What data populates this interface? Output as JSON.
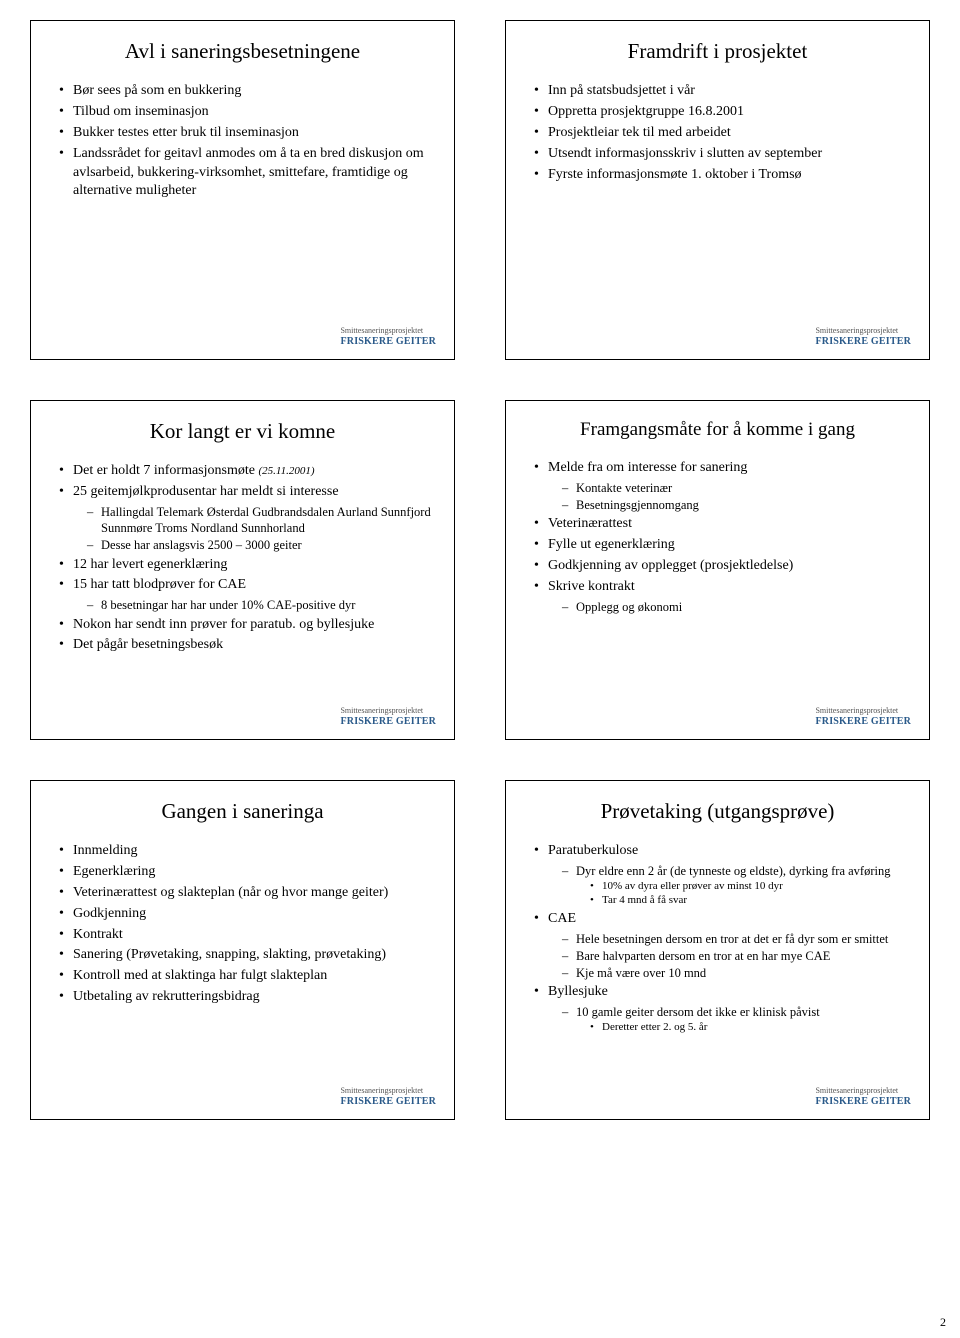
{
  "brand": {
    "line1": "Smittesaneringsprosjektet",
    "line2": "FRISKERE GEITER"
  },
  "pageNumber": "2",
  "slides": {
    "s1": {
      "title": "Avl i saneringsbesetningene",
      "b1": "Bør sees på som en bukkering",
      "b2": "Tilbud om inseminasjon",
      "b3": "Bukker testes etter bruk til inseminasjon",
      "b4": "Landssrådet for geitavl anmodes om å ta en bred diskusjon om avlsarbeid, bukkering-virksomhet, smittefare, framtidige og alternative muligheter"
    },
    "s2": {
      "title": "Framdrift i prosjektet",
      "b1": "Inn på statsbudsjettet i vår",
      "b2": "Oppretta prosjektgruppe 16.8.2001",
      "b3": "Prosjektleiar tek til med arbeidet",
      "b4": "Utsendt informasjonsskriv i slutten av september",
      "b5": "Fyrste informasjonsmøte 1. oktober i Tromsø"
    },
    "s3": {
      "title": "Kor langt er vi komne",
      "b1a": "Det er holdt 7 informasjonsmøte ",
      "b1b": "(25.11.2001)",
      "b2": "25 geitemjølkprodusentar har meldt si interesse",
      "b2s1": "Hallingdal Telemark Østerdal Gudbrandsdalen Aurland Sunnfjord Sunnmøre Troms Nordland Sunnhorland",
      "b2s2": "Desse har anslagsvis 2500 – 3000 geiter",
      "b3": "12 har levert egenerklæring",
      "b4": "15 har tatt blodprøver for CAE",
      "b4s1": "8 besetningar har har under 10% CAE-positive dyr",
      "b5": "Nokon har sendt inn prøver for paratub. og byllesjuke",
      "b6": "Det pågår besetningsbesøk"
    },
    "s4": {
      "title": "Framgangsmåte for å  komme i gang",
      "b1": "Melde fra om interesse for sanering",
      "b1s1": "Kontakte veterinær",
      "b1s2": "Besetningsgjennomgang",
      "b2": "Veterinærattest",
      "b3": "Fylle ut egenerklæring",
      "b4": "Godkjenning av opplegget (prosjektledelse)",
      "b5": "Skrive kontrakt",
      "b5s1": "Opplegg og økonomi"
    },
    "s5": {
      "title": "Gangen i saneringa",
      "b1": "Innmelding",
      "b2": "Egenerklæring",
      "b3": "Veterinærattest og slakteplan (når og hvor mange geiter)",
      "b4": "Godkjenning",
      "b5": "Kontrakt",
      "b6": "Sanering (Prøvetaking, snapping, slakting, prøvetaking)",
      "b7": "Kontroll med at slaktinga har fulgt slakteplan",
      "b8": "Utbetaling av rekrutteringsbidrag"
    },
    "s6": {
      "title": "Prøvetaking (utgangsprøve)",
      "b1": "Paratuberkulose",
      "b1s1": "Dyr eldre enn 2 år (de tynneste og eldste), dyrking fra avføring",
      "b1s1a": "10% av dyra eller prøver av minst 10 dyr",
      "b1s1b": "Tar 4 mnd å få svar",
      "b2": "CAE",
      "b2s1": "Hele besetningen dersom en tror at det er få dyr som er smittet",
      "b2s2": "Bare halvparten dersom en tror at en har mye CAE",
      "b2s3": "Kje må være over 10 mnd",
      "b3": "Byllesjuke",
      "b3s1": "10 gamle geiter dersom det ikke er klinisk påvist",
      "b3s1a": "Deretter etter 2. og 5. år"
    }
  }
}
